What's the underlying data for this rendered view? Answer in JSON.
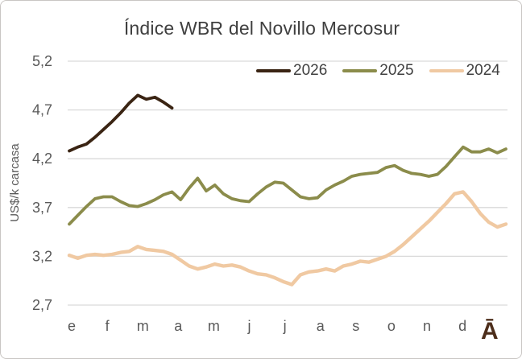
{
  "window": {
    "background": "#ffffff",
    "border_color": "#c9c6c3"
  },
  "logo": {
    "glyph": "Ā",
    "color": "#4d2e1b"
  },
  "chart_data": {
    "type": "line",
    "title": "Índice WBR del Novillo Mercosur",
    "xlabel": "",
    "ylabel": "US$/k carcasa",
    "ylim": [
      2.7,
      5.2
    ],
    "y_tick_values": [
      5.2,
      4.7,
      4.2,
      3.7,
      3.2,
      2.7
    ],
    "y_tick_labels": [
      "5,2",
      "4,7",
      "4,2",
      "3,7",
      "3,2",
      "2,7"
    ],
    "x_month_labels": [
      "e",
      "f",
      "m",
      "a",
      "m",
      "j",
      "j",
      "a",
      "s",
      "o",
      "n",
      "d"
    ],
    "x_unit": "weeks (52 per year)",
    "grid": true,
    "grid_color": "#d9d9d9",
    "axis_text_color": "#595959",
    "title_color": "#3f3f3f",
    "legend_position": "top-right-inside",
    "series": [
      {
        "name": "2026",
        "color": "#3a2413",
        "values": [
          4.28,
          4.32,
          4.35,
          4.42,
          4.5,
          4.58,
          4.67,
          4.77,
          4.85,
          4.81,
          4.83,
          4.78,
          4.72
        ]
      },
      {
        "name": "2025",
        "color": "#8b8c4b",
        "values": [
          3.53,
          3.62,
          3.71,
          3.79,
          3.81,
          3.81,
          3.76,
          3.72,
          3.71,
          3.74,
          3.78,
          3.83,
          3.86,
          3.78,
          3.9,
          4.0,
          3.87,
          3.93,
          3.84,
          3.79,
          3.77,
          3.76,
          3.84,
          3.91,
          3.96,
          3.95,
          3.88,
          3.81,
          3.79,
          3.8,
          3.88,
          3.93,
          3.97,
          4.02,
          4.04,
          4.05,
          4.06,
          4.11,
          4.13,
          4.08,
          4.05,
          4.04,
          4.02,
          4.04,
          4.12,
          4.22,
          4.32,
          4.27,
          4.27,
          4.3,
          4.26,
          4.3
        ]
      },
      {
        "name": "2024",
        "color": "#f0c9a2",
        "values": [
          3.21,
          3.18,
          3.21,
          3.22,
          3.21,
          3.22,
          3.24,
          3.25,
          3.3,
          3.27,
          3.26,
          3.25,
          3.22,
          3.16,
          3.1,
          3.07,
          3.09,
          3.12,
          3.1,
          3.11,
          3.09,
          3.05,
          3.02,
          3.01,
          2.98,
          2.94,
          2.91,
          3.01,
          3.04,
          3.05,
          3.07,
          3.05,
          3.1,
          3.12,
          3.15,
          3.14,
          3.17,
          3.2,
          3.25,
          3.32,
          3.4,
          3.48,
          3.56,
          3.65,
          3.74,
          3.84,
          3.86,
          3.76,
          3.64,
          3.55,
          3.5,
          3.53
        ]
      }
    ]
  }
}
